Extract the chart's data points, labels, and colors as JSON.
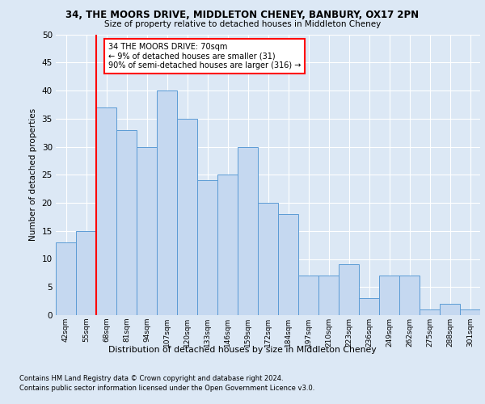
{
  "title1": "34, THE MOORS DRIVE, MIDDLETON CHENEY, BANBURY, OX17 2PN",
  "title2": "Size of property relative to detached houses in Middleton Cheney",
  "xlabel": "Distribution of detached houses by size in Middleton Cheney",
  "ylabel": "Number of detached properties",
  "bins": [
    "42sqm",
    "55sqm",
    "68sqm",
    "81sqm",
    "94sqm",
    "107sqm",
    "120sqm",
    "133sqm",
    "146sqm",
    "159sqm",
    "172sqm",
    "184sqm",
    "197sqm",
    "210sqm",
    "223sqm",
    "236sqm",
    "249sqm",
    "262sqm",
    "275sqm",
    "288sqm",
    "301sqm"
  ],
  "values": [
    13,
    15,
    37,
    33,
    30,
    40,
    35,
    24,
    25,
    30,
    20,
    18,
    7,
    7,
    9,
    3,
    7,
    7,
    1,
    2,
    1
  ],
  "bar_color": "#c5d8f0",
  "bar_edge_color": "#5b9bd5",
  "red_line_x": 2,
  "annotation_text": "34 THE MOORS DRIVE: 70sqm\n← 9% of detached houses are smaller (31)\n90% of semi-detached houses are larger (316) →",
  "annotation_box_color": "white",
  "annotation_box_edge": "red",
  "background_color": "#dce8f5",
  "plot_bg_color": "#dce8f5",
  "footer1": "Contains HM Land Registry data © Crown copyright and database right 2024.",
  "footer2": "Contains public sector information licensed under the Open Government Licence v3.0.",
  "ylim": [
    0,
    50
  ],
  "yticks": [
    0,
    5,
    10,
    15,
    20,
    25,
    30,
    35,
    40,
    45,
    50
  ]
}
